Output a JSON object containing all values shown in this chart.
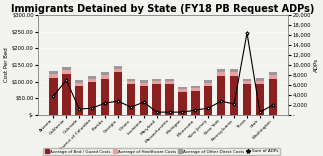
{
  "title": "Immigrants Detained by State (FY18 PB Request ADPs)",
  "states": [
    "Arizona",
    "California",
    "Colorado",
    "District of Columbia",
    "Florida",
    "Georgia",
    "Illinois",
    "Louisiana",
    "Maryland",
    "Massachusetts",
    "Michigan",
    "Minnesota",
    "New Jersey",
    "New York",
    "Pennsylvania",
    "Texas",
    "Utah",
    "Washington"
  ],
  "bed_guard": [
    110,
    122,
    88,
    98,
    108,
    128,
    92,
    88,
    92,
    92,
    68,
    72,
    88,
    118,
    118,
    92,
    92,
    108
  ],
  "healthcare": [
    13,
    13,
    9,
    11,
    11,
    9,
    9,
    9,
    9,
    9,
    9,
    9,
    9,
    11,
    11,
    9,
    11,
    13
  ],
  "other_direct": [
    9,
    9,
    7,
    9,
    9,
    9,
    7,
    7,
    7,
    7,
    6,
    6,
    7,
    9,
    9,
    7,
    7,
    9
  ],
  "adp": [
    3800,
    7000,
    1200,
    1400,
    2400,
    2800,
    1600,
    2600,
    600,
    600,
    600,
    1000,
    1400,
    2800,
    2200,
    16400,
    600,
    2000
  ],
  "color_bed": "#8B2020",
  "color_health": "#E8A0A0",
  "color_other": "#9A9A9A",
  "color_line": "#000000",
  "ylabel_left": "Cost Per Bed",
  "ylabel_right": "ADPs",
  "ylim_left": [
    0,
    300
  ],
  "ylim_right": [
    0,
    20000
  ],
  "yticks_left": [
    0,
    50,
    100,
    150,
    200,
    250,
    300
  ],
  "yticks_left_labels": [
    "$-",
    "$50.00",
    "$100.00",
    "$150.00",
    "$200.00",
    "$250.00",
    "$300.00"
  ],
  "yticks_right": [
    0,
    2000,
    4000,
    6000,
    8000,
    10000,
    12000,
    14000,
    16000,
    18000,
    20000
  ],
  "legend_items": [
    "Average of Bed / Guard Costs",
    "Average of Healthcare Costs",
    "Average of Other Direct Costs",
    "Sum of ADPs"
  ],
  "background_color": "#F2F2EE",
  "title_fontsize": 7.0,
  "bar_width": 0.65
}
